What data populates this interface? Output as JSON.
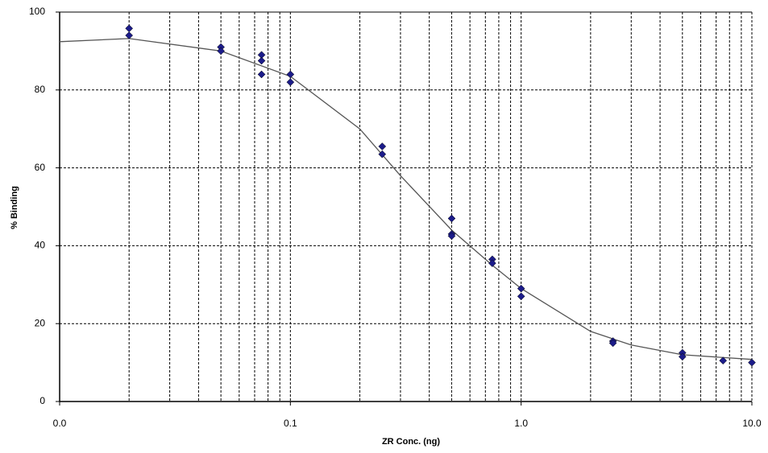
{
  "chart_data": {
    "type": "scatter",
    "x_label": "ZR  Conc. (ng)",
    "y_label": "% Binding",
    "xlog": true,
    "grid": true,
    "xlim": [
      0.01,
      10
    ],
    "ylim": [
      0,
      100
    ],
    "xticks": [
      {
        "value": 0.01,
        "label": "0.0"
      },
      {
        "value": 0.1,
        "label": "0.1"
      },
      {
        "value": 1,
        "label": "1.0"
      },
      {
        "value": 10,
        "label": "10.0"
      }
    ],
    "yticks": [
      0,
      20,
      40,
      60,
      80,
      100
    ],
    "points": {
      "color": "#1c1c8a",
      "x": [
        0.02,
        0.02,
        0.05,
        0.05,
        0.075,
        0.075,
        0.075,
        0.1,
        0.1,
        0.25,
        0.25,
        0.5,
        0.5,
        0.5,
        0.75,
        0.75,
        1,
        1,
        2.5,
        2.5,
        5,
        5,
        7.5,
        10
      ],
      "values": [
        95.8,
        94,
        91,
        90,
        89,
        87.5,
        84,
        84,
        82,
        65.5,
        63.5,
        47,
        43,
        42.5,
        36.5,
        35.5,
        29,
        27,
        15.5,
        15,
        12.5,
        11.5,
        10.5,
        10
      ]
    },
    "curve": {
      "color": "#555555",
      "x": [
        0.01,
        0.02,
        0.05,
        0.1,
        0.2,
        0.3,
        0.5,
        0.75,
        1,
        2,
        3,
        5,
        10
      ],
      "values": [
        92.4,
        93.2,
        90,
        83.5,
        70,
        58,
        44,
        35,
        29,
        18,
        14.5,
        12,
        10.8
      ]
    }
  }
}
